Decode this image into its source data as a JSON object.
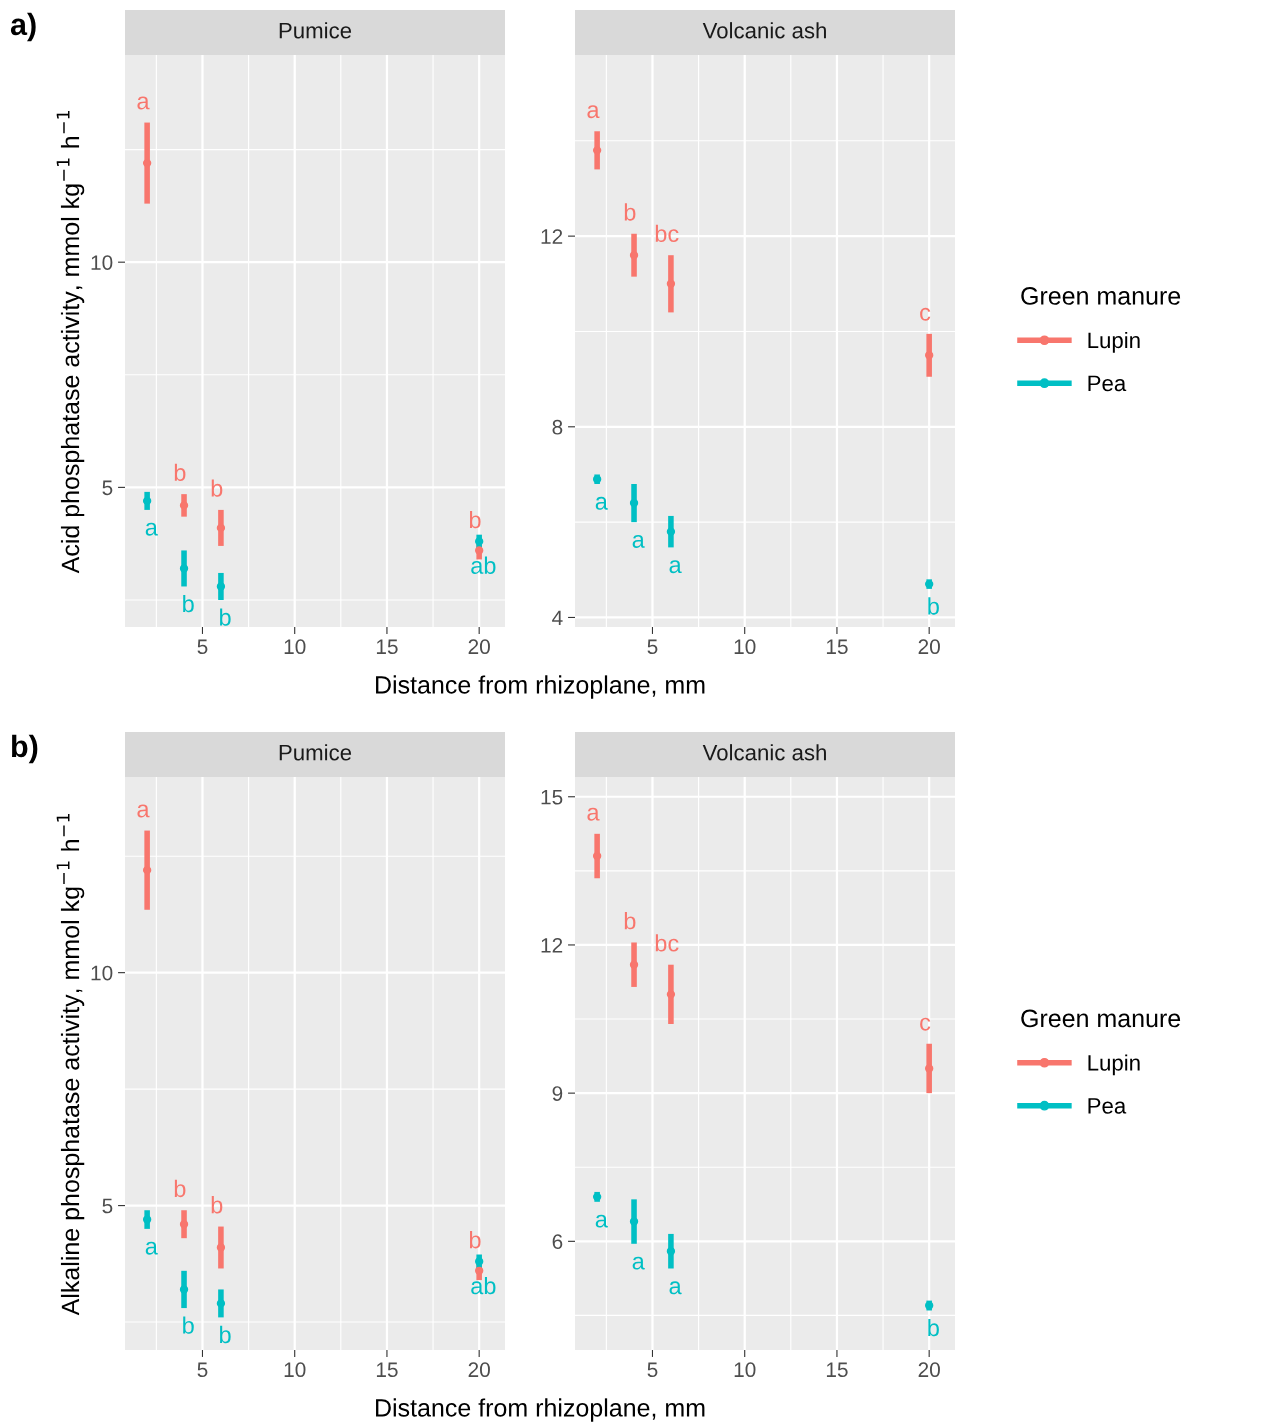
{
  "chart_data": [
    {
      "type": "scatter",
      "title": "Pumice",
      "ylabel": "Acid phosphatase activity, mmol kg$^{−1}$ h$^{−1}$",
      "xlabel": "Distance from rhizoplane, mm",
      "xlim": [
        0.8,
        21.4
      ],
      "xticks": [
        5,
        10,
        15,
        20
      ],
      "ylim": [
        1.9,
        14.6
      ],
      "yticks": [
        5,
        10
      ],
      "grid": true,
      "marker": "circle",
      "legend": "right",
      "legend_title": "Green manure",
      "annotations": [
        "a)",
        {
          "text": "a",
          "x": 2,
          "y": 12.2
        },
        {
          "text": "b",
          "x": 4,
          "y": 4.6
        },
        {
          "text": "b",
          "x": 6,
          "y": 4.1
        },
        {
          "text": "b",
          "x": 20,
          "y": 3.6
        },
        {
          "text": "a",
          "x": 2,
          "y": 4.7
        },
        {
          "text": "b",
          "x": 4,
          "y": 3.2
        },
        {
          "text": "b",
          "x": 6,
          "y": 2.8
        },
        {
          "text": "ab",
          "x": 20,
          "y": 3.8
        }
      ],
      "series": [
        {
          "name": "Lupin",
          "color": "#f8766d",
          "x": [
            2,
            4,
            6,
            20
          ],
          "values": [
            12.2,
            4.6,
            4.1,
            3.6
          ],
          "errors": [
            0.9,
            0.25,
            0.4,
            0.2
          ]
        },
        {
          "name": "Pea",
          "color": "#00bfc4",
          "x": [
            2,
            4,
            6,
            20
          ],
          "values": [
            4.7,
            3.2,
            2.8,
            3.8
          ],
          "errors": [
            0.2,
            0.4,
            0.3,
            0.15
          ]
        }
      ]
    },
    {
      "type": "scatter",
      "title": "Volcanic ash",
      "xlim": [
        0.8,
        21.4
      ],
      "xticks": [
        5,
        10,
        15,
        20
      ],
      "ylim": [
        3.8,
        15.8
      ],
      "yticks": [
        4,
        8,
        12
      ],
      "grid": true,
      "marker": "circle",
      "annotations": [
        {
          "text": "a",
          "x": 2,
          "y": 13.8
        },
        {
          "text": "b",
          "x": 4,
          "y": 11.6
        },
        {
          "text": "bc",
          "x": 6,
          "y": 11.0
        },
        {
          "text": "c",
          "x": 20,
          "y": 9.5
        },
        {
          "text": "a",
          "x": 2,
          "y": 6.9
        },
        {
          "text": "a",
          "x": 4,
          "y": 6.4
        },
        {
          "text": "a",
          "x": 6,
          "y": 5.8
        },
        {
          "text": "b",
          "x": 20,
          "y": 4.7
        }
      ],
      "series": [
        {
          "color": "#f8766d",
          "x": [
            2,
            4,
            6,
            20
          ],
          "values": [
            13.8,
            11.6,
            11.0,
            9.5
          ],
          "errors": [
            0.4,
            0.45,
            0.6,
            0.45
          ]
        },
        {
          "color": "#00bfc4",
          "x": [
            2,
            4,
            6,
            20
          ],
          "values": [
            6.9,
            6.4,
            5.8,
            4.7
          ],
          "errors": [
            0.1,
            0.4,
            0.33,
            0.1
          ]
        }
      ]
    },
    {
      "type": "scatter",
      "title": "Pumice",
      "ylabel": "Alkaline phosphatase activity, mmol kg$^{−1}$ h$^{−1}$",
      "xlabel": "Distance from rhizoplane, mm",
      "xlim": [
        0.8,
        21.4
      ],
      "xticks": [
        5,
        10,
        15,
        20
      ],
      "ylim": [
        1.9,
        14.2
      ],
      "yticks": [
        5,
        10
      ],
      "grid": true,
      "marker": "circle",
      "legend": "right",
      "legend_title": "Green manure",
      "annotations": [
        "b)",
        {
          "text": "a",
          "x": 2,
          "y": 12.2
        },
        {
          "text": "b",
          "x": 4,
          "y": 4.6
        },
        {
          "text": "b",
          "x": 6,
          "y": 4.1
        },
        {
          "text": "b",
          "x": 20,
          "y": 3.6
        },
        {
          "text": "a",
          "x": 2,
          "y": 4.7
        },
        {
          "text": "b",
          "x": 4,
          "y": 3.2
        },
        {
          "text": "b",
          "x": 6,
          "y": 2.9
        },
        {
          "text": "ab",
          "x": 20,
          "y": 3.8
        }
      ],
      "series": [
        {
          "name": "Lupin",
          "color": "#f8766d",
          "x": [
            2,
            4,
            6,
            20
          ],
          "values": [
            12.2,
            4.6,
            4.1,
            3.6
          ],
          "errors": [
            0.85,
            0.3,
            0.45,
            0.2
          ]
        },
        {
          "name": "Pea",
          "color": "#00bfc4",
          "x": [
            2,
            4,
            6,
            20
          ],
          "values": [
            4.7,
            3.2,
            2.9,
            3.8
          ],
          "errors": [
            0.2,
            0.4,
            0.3,
            0.15
          ]
        }
      ]
    },
    {
      "type": "scatter",
      "title": "Volcanic ash",
      "xlim": [
        0.8,
        21.4
      ],
      "xticks": [
        5,
        10,
        15,
        20
      ],
      "ylim": [
        3.8,
        15.4
      ],
      "yticks": [
        6,
        9,
        12,
        15
      ],
      "grid": true,
      "marker": "circle",
      "annotations": [
        {
          "text": "a",
          "x": 2,
          "y": 13.8
        },
        {
          "text": "b",
          "x": 4,
          "y": 11.6
        },
        {
          "text": "bc",
          "x": 6,
          "y": 11.0
        },
        {
          "text": "c",
          "x": 20,
          "y": 9.5
        },
        {
          "text": "a",
          "x": 2,
          "y": 6.9
        },
        {
          "text": "a",
          "x": 4,
          "y": 6.4
        },
        {
          "text": "a",
          "x": 6,
          "y": 5.8
        },
        {
          "text": "b",
          "x": 20,
          "y": 4.7
        }
      ],
      "series": [
        {
          "color": "#f8766d",
          "x": [
            2,
            4,
            6,
            20
          ],
          "values": [
            13.8,
            11.6,
            11.0,
            9.5
          ],
          "errors": [
            0.45,
            0.45,
            0.6,
            0.5
          ]
        },
        {
          "color": "#00bfc4",
          "x": [
            2,
            4,
            6,
            20
          ],
          "values": [
            6.9,
            6.4,
            5.8,
            4.7
          ],
          "errors": [
            0.1,
            0.45,
            0.35,
            0.1
          ]
        }
      ]
    }
  ]
}
